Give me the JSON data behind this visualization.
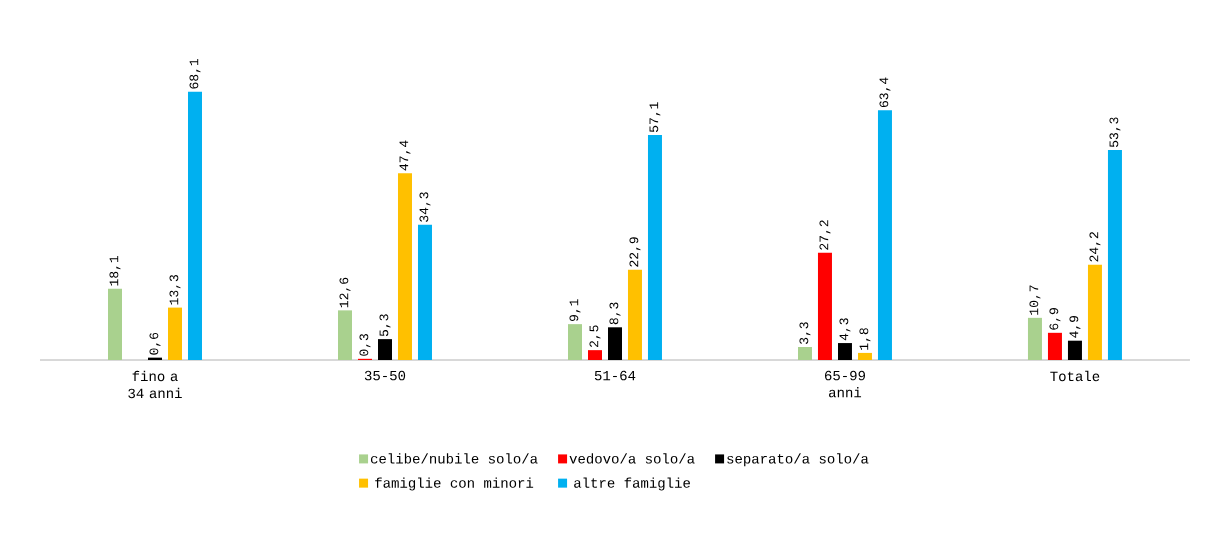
{
  "chart_data": {
    "type": "bar",
    "categories": [
      "fino a 34 anni",
      "35-50",
      "51-64",
      "65-99 anni",
      "Totale"
    ],
    "series": [
      {
        "name": "celibe/nubile solo/a",
        "color": "#a9d18e",
        "values": [
          18.1,
          12.6,
          9.1,
          3.3,
          10.7
        ],
        "value_labels": [
          "18,1",
          "12,6",
          "9,1",
          "3,3",
          "10,7"
        ]
      },
      {
        "name": "vedovo/a solo/a",
        "color": "#ff0000",
        "values": [
          null,
          0.3,
          2.5,
          27.2,
          6.9
        ],
        "value_labels": [
          null,
          "0,3",
          "2,5",
          "27,2",
          "6,9"
        ]
      },
      {
        "name": "separato/a solo/a",
        "color": "#000000",
        "values": [
          0.6,
          5.3,
          8.3,
          4.3,
          4.9
        ],
        "value_labels": [
          "0,6",
          "5,3",
          "8,3",
          "4,3",
          "4,9"
        ]
      },
      {
        "name": "famiglie con minori",
        "color": "#ffc000",
        "values": [
          13.3,
          47.4,
          22.9,
          1.8,
          24.2
        ],
        "value_labels": [
          "13,3",
          "47,4",
          "22,9",
          "1,8",
          "24,2"
        ]
      },
      {
        "name": "altre famiglie",
        "color": "#00b0f0",
        "values": [
          68.1,
          34.3,
          57.1,
          63.4,
          53.3
        ],
        "value_labels": [
          "68,1",
          "34,3",
          "57,1",
          "63,4",
          "53,3"
        ]
      }
    ],
    "legend": "bottom",
    "grid": false
  }
}
